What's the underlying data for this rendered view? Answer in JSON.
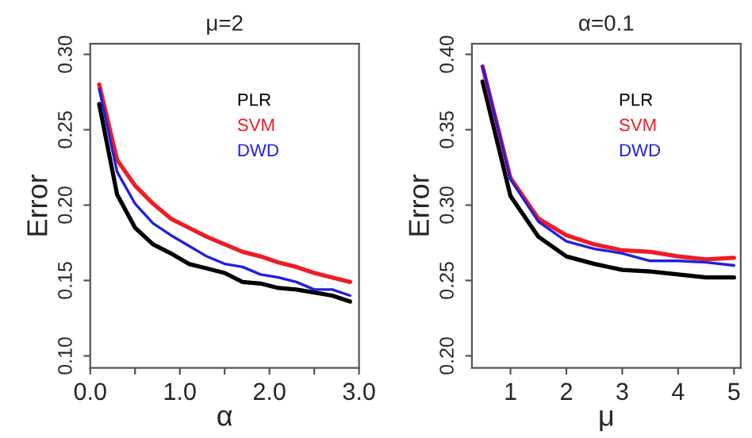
{
  "chart_data": [
    {
      "type": "line",
      "title": "μ=2",
      "xlabel": "α",
      "ylabel": "Error",
      "legend": "top right",
      "grid": false,
      "xlim": [
        0,
        3.0
      ],
      "ylim": [
        0.092,
        0.307
      ],
      "xticks": [
        {
          "value": 0.0,
          "label": "0.0"
        },
        {
          "value": 0.5,
          "label": null
        },
        {
          "value": 1.0,
          "label": "1.0"
        },
        {
          "value": 1.5,
          "label": null
        },
        {
          "value": 2.0,
          "label": "2.0"
        },
        {
          "value": 2.5,
          "label": null
        },
        {
          "value": 3.0,
          "label": "3.0"
        }
      ],
      "yticks": [
        {
          "value": 0.1,
          "label": "0.10"
        },
        {
          "value": 0.15,
          "label": "0.15"
        },
        {
          "value": 0.2,
          "label": "0.20"
        },
        {
          "value": 0.25,
          "label": "0.25"
        },
        {
          "value": 0.3,
          "label": "0.30"
        }
      ],
      "x": [
        0.1,
        0.3,
        0.5,
        0.7,
        0.9,
        1.1,
        1.3,
        1.5,
        1.7,
        1.9,
        2.1,
        2.3,
        2.5,
        2.7,
        2.9
      ],
      "series": [
        {
          "name": "PLR",
          "color": "#000000",
          "values": [
            0.267,
            0.207,
            0.185,
            0.174,
            0.168,
            0.161,
            0.158,
            0.155,
            0.149,
            0.148,
            0.145,
            0.144,
            0.142,
            0.14,
            0.136
          ]
        },
        {
          "name": "SVM",
          "color": "#ee1c24",
          "values": [
            0.28,
            0.23,
            0.213,
            0.201,
            0.191,
            0.185,
            0.179,
            0.174,
            0.169,
            0.166,
            0.162,
            0.159,
            0.155,
            0.152,
            0.149
          ]
        },
        {
          "name": "DWD",
          "color": "#1f1fe0",
          "values": [
            0.277,
            0.222,
            0.201,
            0.188,
            0.18,
            0.173,
            0.166,
            0.161,
            0.159,
            0.154,
            0.152,
            0.149,
            0.144,
            0.144,
            0.14
          ]
        }
      ]
    },
    {
      "type": "line",
      "title": "α=0.1",
      "xlabel": "μ",
      "ylabel": "Error",
      "legend": "top right",
      "grid": false,
      "xlim": [
        0.31,
        5.12
      ],
      "ylim": [
        0.192,
        0.407
      ],
      "xticks": [
        1,
        2,
        3,
        4,
        5
      ],
      "yticks": [
        {
          "value": 0.2,
          "label": "0.20"
        },
        {
          "value": 0.25,
          "label": "0.25"
        },
        {
          "value": 0.3,
          "label": "0.30"
        },
        {
          "value": 0.35,
          "label": "0.35"
        },
        {
          "value": 0.4,
          "label": "0.40"
        }
      ],
      "x": [
        0.5,
        1,
        1.5,
        2,
        2.5,
        3,
        3.5,
        4,
        4.5,
        5
      ],
      "series": [
        {
          "name": "PLR",
          "color": "#000000",
          "values": [
            0.382,
            0.306,
            0.279,
            0.266,
            0.261,
            0.257,
            0.256,
            0.254,
            0.252,
            0.252
          ]
        },
        {
          "name": "SVM",
          "color": "#ee1c24",
          "values": [
            0.392,
            0.318,
            0.291,
            0.28,
            0.274,
            0.27,
            0.269,
            0.266,
            0.264,
            0.265
          ]
        },
        {
          "name": "DWD",
          "color": "#1f1fe0",
          "values": [
            0.392,
            0.317,
            0.289,
            0.276,
            0.271,
            0.268,
            0.263,
            0.263,
            0.262,
            0.26
          ]
        }
      ]
    }
  ]
}
